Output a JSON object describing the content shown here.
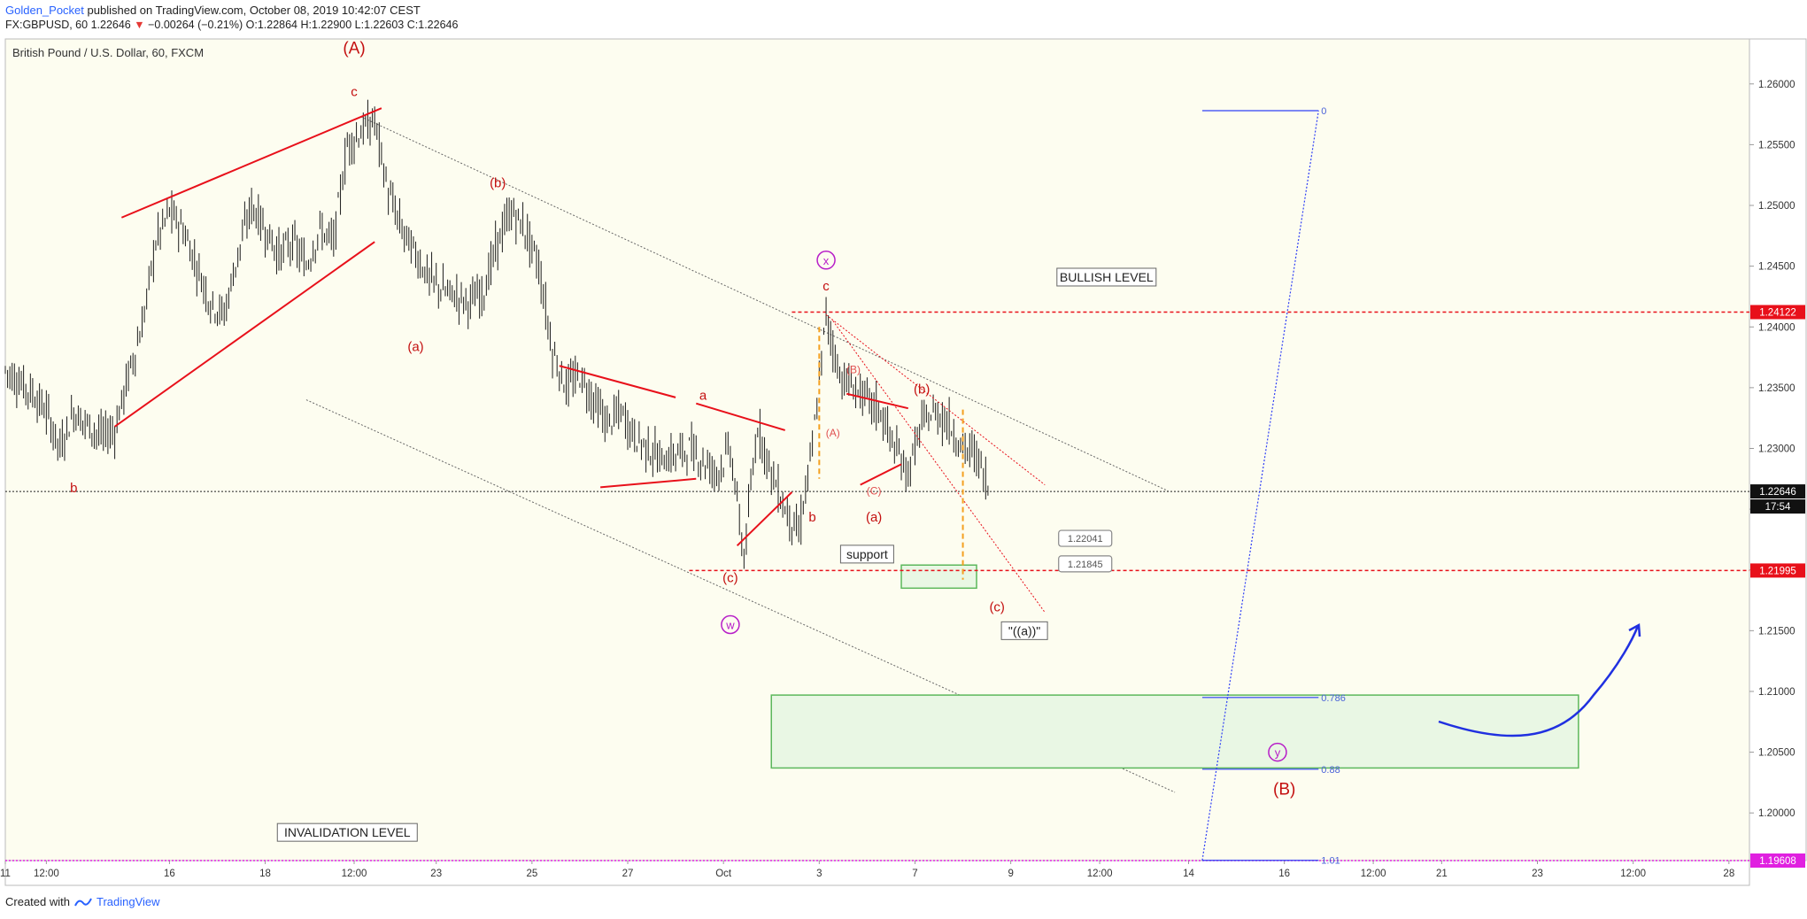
{
  "header": {
    "author": "Golden_Pocket",
    "published": "published on TradingView.com, October 08, 2019 10:42:07 CEST",
    "symbol": "FX:GBPUSD, 60",
    "last": "1.22646",
    "change": "−0.00264 (−0.21%)",
    "o": "1.22864",
    "h": "1.22900",
    "l": "1.22603",
    "c": "1.22646"
  },
  "footer": {
    "created_with": "Created with",
    "brand": "TradingView"
  },
  "colors": {
    "plot_bg": "#fdfdf0",
    "bars": "#1c1c1c",
    "red": "#e8101a",
    "wave_red": "#c41010",
    "magenta": "#b71ec8",
    "blue": "#2f3ff5",
    "orange": "#f4a020",
    "green_line": "#5cb85c",
    "green_fill": "#e9f7e4",
    "pink_dotted": "#e020e0"
  },
  "chart_data": {
    "type": "line",
    "title": "British Pound / U.S. Dollar, 60, FXCM",
    "ylim": [
      1.19608,
      1.2637
    ],
    "y_ticks": [
      "1.26000",
      "1.25500",
      "1.25000",
      "1.24500",
      "1.24000",
      "1.23500",
      "1.23000",
      "1.22500",
      "1.22000",
      "1.21500",
      "1.21000",
      "1.20500",
      "1.20000"
    ],
    "x_tick_labels": [
      "11",
      "12:00",
      "16",
      "18",
      "12:00",
      "23",
      "25",
      "27",
      "Oct",
      "3",
      "7",
      "9",
      "12:00",
      "14",
      "16",
      "12:00",
      "21",
      "23",
      "12:00",
      "28"
    ],
    "x_tick_index": [
      0,
      6,
      24,
      38,
      51,
      63,
      77,
      91,
      105,
      119,
      133,
      147,
      160,
      173,
      187,
      200,
      210,
      224,
      238,
      252
    ],
    "x_range": [
      0,
      255
    ],
    "series": [
      {
        "values": [
          [
            0,
            1.2365
          ],
          [
            2,
            1.2355
          ],
          [
            4,
            1.2345
          ],
          [
            6,
            1.233
          ],
          [
            8,
            1.23
          ],
          [
            10,
            1.233
          ],
          [
            12,
            1.232
          ],
          [
            14,
            1.231
          ],
          [
            16,
            1.2315
          ],
          [
            18,
            1.236
          ],
          [
            20,
            1.24
          ],
          [
            22,
            1.247
          ],
          [
            24,
            1.2495
          ],
          [
            26,
            1.248
          ],
          [
            28,
            1.245
          ],
          [
            30,
            1.242
          ],
          [
            32,
            1.241
          ],
          [
            34,
            1.246
          ],
          [
            36,
            1.25
          ],
          [
            38,
            1.248
          ],
          [
            40,
            1.246
          ],
          [
            42,
            1.247
          ],
          [
            44,
            1.245
          ],
          [
            46,
            1.248
          ],
          [
            48,
            1.247
          ],
          [
            50,
            1.255
          ],
          [
            52,
            1.256
          ],
          [
            54,
            1.257
          ],
          [
            56,
            1.251
          ],
          [
            58,
            1.248
          ],
          [
            60,
            1.246
          ],
          [
            62,
            1.244
          ],
          [
            64,
            1.243
          ],
          [
            66,
            1.2425
          ],
          [
            68,
            1.242
          ],
          [
            70,
            1.243
          ],
          [
            72,
            1.247
          ],
          [
            74,
            1.2495
          ],
          [
            76,
            1.248
          ],
          [
            78,
            1.245
          ],
          [
            80,
            1.238
          ],
          [
            82,
            1.235
          ],
          [
            84,
            1.236
          ],
          [
            86,
            1.234
          ],
          [
            88,
            1.232
          ],
          [
            90,
            1.233
          ],
          [
            92,
            1.231
          ],
          [
            94,
            1.23
          ],
          [
            96,
            1.229
          ],
          [
            98,
            1.2295
          ],
          [
            100,
            1.23
          ],
          [
            102,
            1.229
          ],
          [
            104,
            1.228
          ],
          [
            106,
            1.23
          ],
          [
            108,
            1.221
          ],
          [
            110,
            1.232
          ],
          [
            112,
            1.228
          ],
          [
            114,
            1.225
          ],
          [
            116,
            1.223
          ],
          [
            118,
            1.23
          ],
          [
            120,
            1.241
          ],
          [
            122,
            1.236
          ],
          [
            124,
            1.235
          ],
          [
            126,
            1.234
          ],
          [
            128,
            1.233
          ],
          [
            130,
            1.23
          ],
          [
            132,
            1.228
          ],
          [
            134,
            1.232
          ],
          [
            136,
            1.233
          ],
          [
            138,
            1.232
          ],
          [
            140,
            1.23
          ],
          [
            142,
            1.2295
          ],
          [
            144,
            1.2264
          ]
        ],
        "ohlc_summary": {
          "last": 1.22646
        }
      }
    ],
    "price_labels": {
      "current": "1.22646",
      "countdown": "17:54",
      "bullish": "1.24122",
      "support": "1.21995",
      "invalidation": "1.19608"
    },
    "callouts": [
      "1.22041",
      "1.21845"
    ],
    "text_boxes": {
      "bullish_level": "BULLISH LEVEL",
      "support": "support",
      "invalidation_level": "INVALIDATION LEVEL",
      "a_quote": "\"((a))\""
    },
    "fib_levels": [
      {
        "label": "0",
        "price": 1.2578
      },
      {
        "label": "0.786",
        "price": 1.2095
      },
      {
        "label": "0.88",
        "price": 1.2036
      },
      {
        "label": "1.01",
        "price": 1.1961
      }
    ],
    "wave_labels": [
      {
        "text": "(A)",
        "x": 51,
        "y": 1.2625,
        "kind": "big"
      },
      {
        "text": "c",
        "x": 51,
        "y": 1.259,
        "kind": "small"
      },
      {
        "text": "b",
        "x": 10,
        "y": 1.2264,
        "kind": "small"
      },
      {
        "text": "(b)",
        "x": 72,
        "y": 1.2515,
        "kind": "small"
      },
      {
        "text": "(a)",
        "x": 60,
        "y": 1.238,
        "kind": "small"
      },
      {
        "text": "a",
        "x": 102,
        "y": 1.234,
        "kind": "small"
      },
      {
        "text": "b",
        "x": 118,
        "y": 1.224,
        "kind": "small"
      },
      {
        "text": "(c)",
        "x": 106,
        "y": 1.219,
        "kind": "small"
      },
      {
        "text": "c",
        "x": 120,
        "y": 1.243,
        "kind": "small"
      },
      {
        "text": "(B)",
        "x": 124,
        "y": 1.2362,
        "kind": "tiny"
      },
      {
        "text": "(A)",
        "x": 121,
        "y": 1.231,
        "kind": "tiny"
      },
      {
        "text": "(C)",
        "x": 127,
        "y": 1.2262,
        "kind": "tiny"
      },
      {
        "text": "(b)",
        "x": 134,
        "y": 1.2345,
        "kind": "small"
      },
      {
        "text": "(a)",
        "x": 127,
        "y": 1.224,
        "kind": "small"
      },
      {
        "text": "(c)",
        "x": 145,
        "y": 1.2166,
        "kind": "small"
      },
      {
        "text": "(B)",
        "x": 187,
        "y": 1.2015,
        "kind": "big"
      }
    ],
    "circle_labels": [
      {
        "text": "x",
        "x": 120,
        "y": 1.2455
      },
      {
        "text": "w",
        "x": 106,
        "y": 1.2155
      },
      {
        "text": "y",
        "x": 186,
        "y": 1.205
      }
    ]
  }
}
